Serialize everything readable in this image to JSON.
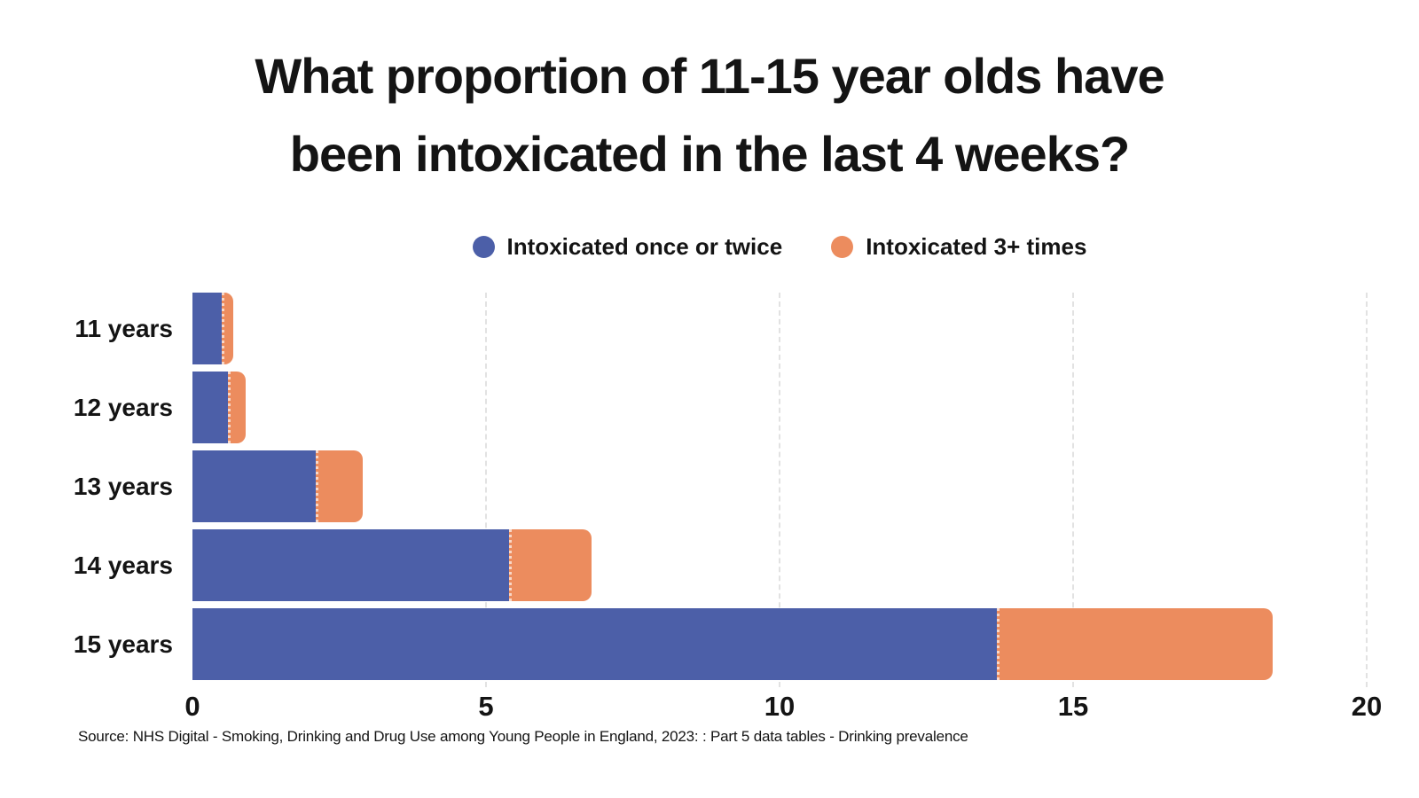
{
  "title": {
    "line1": "What proportion of 11-15 year olds have",
    "line2": "been intoxicated in the last 4 weeks?"
  },
  "legend": [
    {
      "label": "Intoxicated once or twice",
      "color": "#4C5FA8"
    },
    {
      "label": "Intoxicated 3+ times",
      "color": "#EC8C5E"
    }
  ],
  "source": "Source: NHS Digital - Smoking, Drinking and Drug Use among Young People in England, 2023: : Part 5 data tables - Drinking prevalence",
  "colors": {
    "once_or_twice": "#4C5FA8",
    "three_plus": "#EC8C5E",
    "gridline": "#e2e2e2",
    "text": "#141414",
    "background": "#ffffff"
  },
  "chart_data": {
    "type": "bar",
    "orientation": "horizontal",
    "stacked": true,
    "title": "What proportion of 11-15 year olds have been intoxicated in the last 4 weeks?",
    "categories": [
      "11 years",
      "12 years",
      "13 years",
      "14 years",
      "15 years"
    ],
    "series": [
      {
        "name": "Intoxicated once or twice",
        "color": "#4C5FA8",
        "values": [
          0.5,
          0.6,
          2.1,
          5.4,
          13.7
        ]
      },
      {
        "name": "Intoxicated 3+ times",
        "color": "#EC8C5E",
        "values": [
          0.2,
          0.3,
          0.8,
          1.4,
          4.7
        ]
      }
    ],
    "xlabel": "",
    "ylabel": "",
    "xlim": [
      0,
      20
    ],
    "xticks": [
      0,
      5,
      10,
      15,
      20
    ],
    "grid": true,
    "legend_position": "top"
  }
}
